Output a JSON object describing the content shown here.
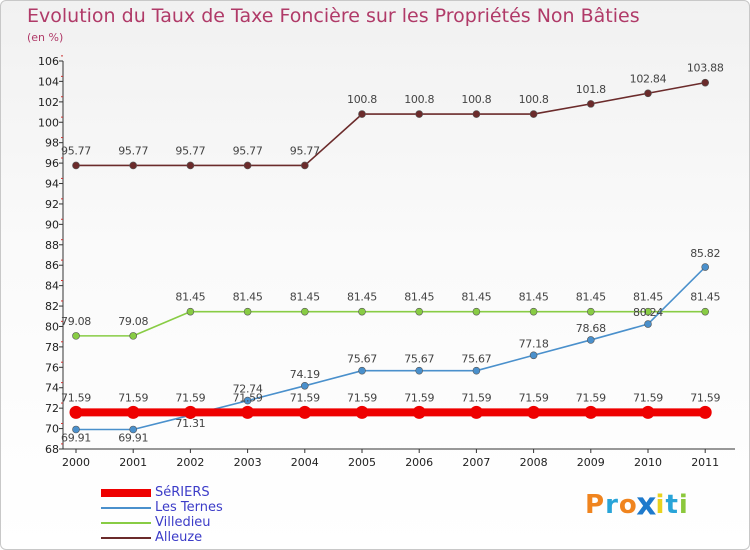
{
  "title": "Evolution du Taux de Taxe Foncière sur les Propriétés Non Bâties",
  "unit": "(en %)",
  "brand": [
    "P",
    "r",
    "o",
    "x",
    "i",
    "t",
    "i"
  ],
  "colors": {
    "brand": [
      "#f0841e",
      "#28a4d8",
      "#f0841e",
      "#1e7acc",
      "#e8d21e",
      "#28a4d8",
      "#8cc83c"
    ]
  },
  "chart_data": {
    "type": "line",
    "title": "Evolution du Taux de Taxe Foncière sur les Propriétés Non Bâties",
    "ylabel": "(en %)",
    "xlabel": "",
    "ylim": [
      68,
      106
    ],
    "yticks": [
      "68",
      "70",
      "72",
      "74",
      "76",
      "78",
      "80",
      "82",
      "84",
      "86",
      "88",
      "90",
      "92",
      "94",
      "96",
      "98",
      "100",
      "102",
      "104",
      "106"
    ],
    "categories": [
      "2000",
      "2001",
      "2002",
      "2003",
      "2004",
      "2005",
      "2006",
      "2007",
      "2008",
      "2009",
      "2010",
      "2011"
    ],
    "grid": false,
    "legend_position": "bottom-left",
    "series": [
      {
        "name": "SéRIERS",
        "color": "#ee0000",
        "values": [
          71.59,
          71.59,
          71.59,
          71.59,
          71.59,
          71.59,
          71.59,
          71.59,
          71.59,
          71.59,
          71.59,
          71.59
        ],
        "labels": [
          "71.59",
          "71.59",
          "71.59",
          "71.59",
          "71.59",
          "71.59",
          "71.59",
          "71.59",
          "71.59",
          "71.59",
          "71.59",
          "71.59"
        ]
      },
      {
        "name": "Les Ternes",
        "color": "#4a90cc",
        "values": [
          69.91,
          69.91,
          71.31,
          72.74,
          74.19,
          75.67,
          75.67,
          75.67,
          77.18,
          78.68,
          80.24,
          85.82
        ],
        "labels": [
          "69.91",
          "69.91",
          "71.31",
          "72.74",
          "74.19",
          "75.67",
          "75.67",
          "75.67",
          "77.18",
          "78.68",
          "80.24",
          "85.82"
        ]
      },
      {
        "name": "Villedieu",
        "color": "#88cc44",
        "values": [
          79.08,
          79.08,
          81.45,
          81.45,
          81.45,
          81.45,
          81.45,
          81.45,
          81.45,
          81.45,
          81.45,
          81.45
        ],
        "labels": [
          "79.08",
          "79.08",
          "81.45",
          "81.45",
          "81.45",
          "81.45",
          "81.45",
          "81.45",
          "81.45",
          "81.45",
          "81.45",
          "81.45"
        ]
      },
      {
        "name": "Alleuze",
        "color": "#6b2b2b",
        "values": [
          95.77,
          95.77,
          95.77,
          95.77,
          95.77,
          100.8,
          100.8,
          100.8,
          100.8,
          101.8,
          102.84,
          103.88
        ],
        "labels": [
          "95.77",
          "95.77",
          "95.77",
          "95.77",
          "95.77",
          "100.8",
          "100.8",
          "100.8",
          "100.8",
          "101.8",
          "102.84",
          "103.88"
        ]
      }
    ]
  }
}
